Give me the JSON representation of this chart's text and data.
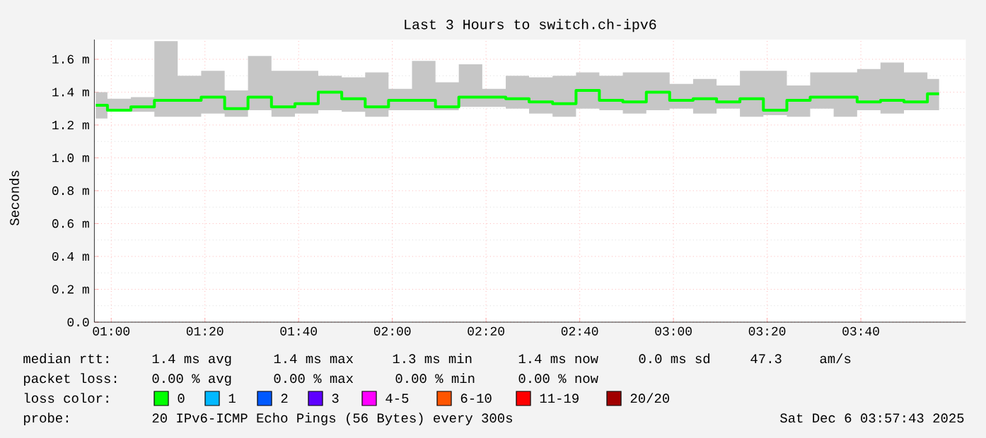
{
  "chart_data": {
    "type": "step",
    "title": "Last 3 Hours to switch.ch-ipv6",
    "ylabel": "Seconds",
    "x": [
      0.945,
      1.028,
      1.112,
      1.195,
      1.278,
      1.362,
      1.445,
      1.528,
      1.612,
      1.695,
      1.778,
      1.862,
      1.945,
      2.028,
      2.112,
      2.195,
      2.278,
      2.362,
      2.445,
      2.528,
      2.612,
      2.695,
      2.778,
      2.862,
      2.945,
      3.028,
      3.112,
      3.195,
      3.278,
      3.362,
      3.445,
      3.528,
      3.612,
      3.695,
      3.778,
      3.862,
      3.945
    ],
    "series": [
      {
        "color": "#00ff00",
        "values": [
          1.32,
          1.29,
          1.31,
          1.35,
          1.35,
          1.37,
          1.3,
          1.37,
          1.31,
          1.33,
          1.4,
          1.36,
          1.31,
          1.35,
          1.35,
          1.31,
          1.37,
          1.37,
          1.36,
          1.34,
          1.33,
          1.41,
          1.35,
          1.34,
          1.4,
          1.35,
          1.36,
          1.34,
          1.36,
          1.29,
          1.35,
          1.37,
          1.37,
          1.34,
          1.35,
          1.34,
          1.39
        ],
        "upper": [
          1.4,
          1.36,
          1.37,
          1.71,
          1.5,
          1.53,
          1.41,
          1.62,
          1.53,
          1.53,
          1.5,
          1.49,
          1.52,
          1.42,
          1.59,
          1.46,
          1.57,
          1.42,
          1.5,
          1.49,
          1.5,
          1.52,
          1.5,
          1.52,
          1.52,
          1.45,
          1.48,
          1.44,
          1.53,
          1.53,
          1.44,
          1.52,
          1.52,
          1.54,
          1.58,
          1.52,
          1.48
        ],
        "lower": [
          1.24,
          1.29,
          1.28,
          1.25,
          1.25,
          1.27,
          1.25,
          1.29,
          1.25,
          1.27,
          1.29,
          1.28,
          1.25,
          1.29,
          1.29,
          1.29,
          1.31,
          1.31,
          1.3,
          1.27,
          1.25,
          1.3,
          1.29,
          1.27,
          1.29,
          1.3,
          1.27,
          1.3,
          1.25,
          1.26,
          1.25,
          1.3,
          1.25,
          1.29,
          1.27,
          1.29,
          1.29
        ]
      }
    ],
    "xlim": [
      0.94,
      4.04
    ],
    "ylim": [
      0,
      1.72
    ],
    "xticks": [
      {
        "value": 1.0,
        "label": "01:00"
      },
      {
        "value": 1.3333,
        "label": "01:20"
      },
      {
        "value": 1.6667,
        "label": "01:40"
      },
      {
        "value": 2.0,
        "label": "02:00"
      },
      {
        "value": 2.3333,
        "label": "02:20"
      },
      {
        "value": 2.6667,
        "label": "02:40"
      },
      {
        "value": 3.0,
        "label": "03:00"
      },
      {
        "value": 3.3333,
        "label": "03:20"
      },
      {
        "value": 3.6667,
        "label": "03:40"
      }
    ],
    "yticks": [
      {
        "value": 0,
        "label": "0.0"
      },
      {
        "value": 0.2,
        "label": "0.2 m"
      },
      {
        "value": 0.4,
        "label": "0.4 m"
      },
      {
        "value": 0.6,
        "label": "0.6 m"
      },
      {
        "value": 0.8,
        "label": "0.8 m"
      },
      {
        "value": 1.0,
        "label": "1.0 m"
      },
      {
        "value": 1.2,
        "label": "1.2 m"
      },
      {
        "value": 1.4,
        "label": "1.4 m"
      },
      {
        "value": 1.6,
        "label": "1.6 m"
      }
    ],
    "grid": true,
    "annotations": [
      "median rtt:",
      "1.4 ms avg",
      "1.4 ms max",
      "1.3 ms min",
      "1.4 ms now",
      "0.0 ms sd",
      "47.3",
      "am/s",
      "packet loss:",
      "0.00 % avg",
      "0.00 % max",
      "0.00 % min",
      "0.00 % now",
      "loss color:",
      "0",
      "1",
      "2",
      "3",
      "4-5",
      "6-10",
      "11-19",
      "20/20",
      "probe:",
      "20 IPv6-ICMP Echo Pings (56 Bytes) every 300s",
      "Sat Dec  6 03:57:43 2025"
    ]
  }
}
